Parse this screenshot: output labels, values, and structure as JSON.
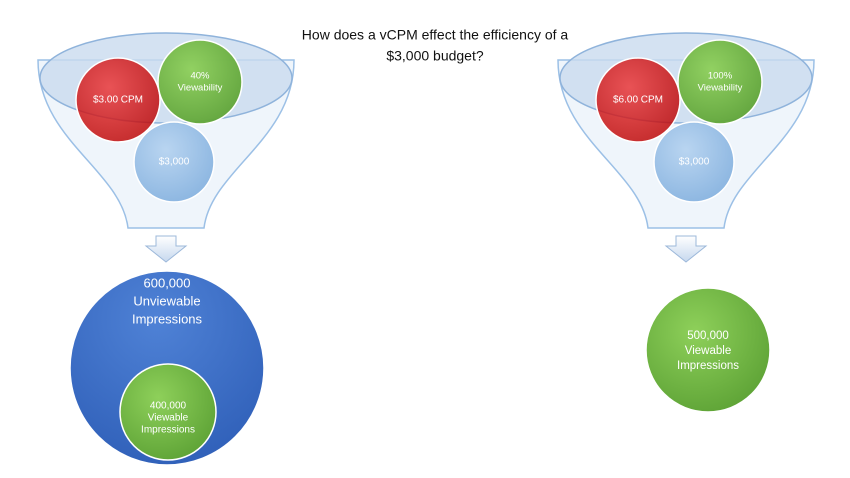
{
  "title": [
    "How does a vCPM effect the efficiency of a",
    "$3,000 budget?"
  ],
  "funnels": [
    {
      "cpm": "$3.00 CPM",
      "viewability": [
        "40%",
        "Viewability"
      ],
      "budget": "$3,000",
      "result": [
        "600,000",
        "Unviewable",
        "Impressions"
      ],
      "inner": [
        "400,000",
        "Viewable",
        "Impressions"
      ]
    },
    {
      "cpm": "$6.00 CPM",
      "viewability": [
        "100%",
        "Viewability"
      ],
      "budget": "$3,000",
      "result": [
        "500,000",
        "Viewable",
        "Impressions"
      ]
    }
  ]
}
